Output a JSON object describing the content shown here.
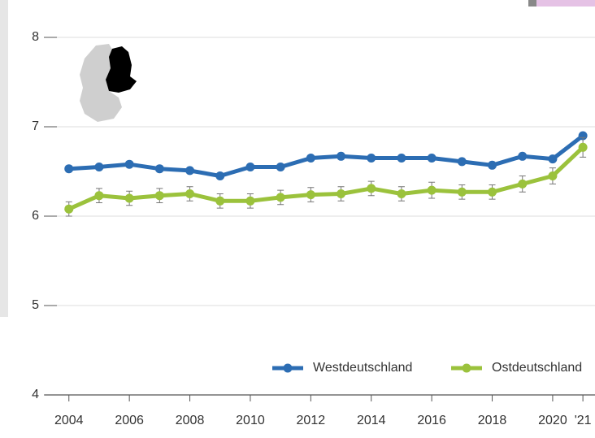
{
  "chart_data": {
    "type": "line",
    "x": [
      2004,
      2005,
      2006,
      2007,
      2008,
      2009,
      2010,
      2011,
      2012,
      2013,
      2014,
      2015,
      2016,
      2017,
      2018,
      2019,
      2020,
      2021
    ],
    "series": [
      {
        "name": "Westdeutschland",
        "color": "#2c6db3",
        "values": [
          6.53,
          6.55,
          6.58,
          6.53,
          6.51,
          6.45,
          6.55,
          6.55,
          6.65,
          6.67,
          6.65,
          6.65,
          6.65,
          6.61,
          6.57,
          6.67,
          6.64,
          6.9
        ]
      },
      {
        "name": "Ostdeutschland",
        "color": "#9bc23c",
        "values": [
          6.08,
          6.23,
          6.2,
          6.23,
          6.25,
          6.17,
          6.17,
          6.21,
          6.24,
          6.25,
          6.31,
          6.25,
          6.29,
          6.27,
          6.27,
          6.36,
          6.45,
          6.77
        ],
        "errors": [
          0.08,
          0.08,
          0.08,
          0.08,
          0.08,
          0.08,
          0.08,
          0.08,
          0.08,
          0.08,
          0.08,
          0.08,
          0.09,
          0.08,
          0.08,
          0.09,
          0.09,
          0.11
        ]
      }
    ],
    "xlim": [
      2003.2,
      2021.4
    ],
    "xticks": [
      2004,
      2006,
      2008,
      2010,
      2012,
      2014,
      2016,
      2018,
      2020,
      {
        "value": 2021,
        "label": "'21"
      }
    ],
    "ylim": [
      4,
      8
    ],
    "yticks": [
      4,
      5,
      6,
      7,
      8
    ],
    "grid": true,
    "legend": "bottom-right"
  }
}
